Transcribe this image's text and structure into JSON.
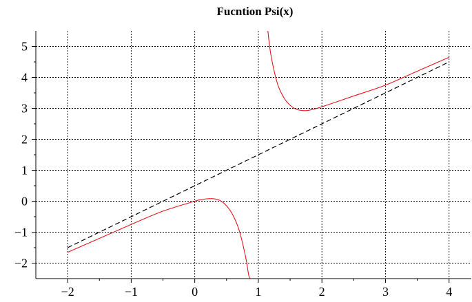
{
  "chart_data": {
    "type": "line",
    "title": "Fucntion  Psi(x)",
    "xlabel": "",
    "ylabel": "",
    "xlim": [
      -2.5,
      4.35
    ],
    "ylim": [
      -2.5,
      5.5
    ],
    "xticks": [
      -2,
      -1,
      0,
      1,
      2,
      3,
      4
    ],
    "yticks": [
      -2,
      -1,
      0,
      1,
      2,
      3,
      4,
      5
    ],
    "xtick_labels": [
      "−2",
      "−1",
      "0",
      "1",
      "2",
      "3",
      "4"
    ],
    "ytick_labels": [
      "−2",
      "−1",
      "0",
      "1",
      "2",
      "3",
      "4",
      "5"
    ],
    "grid": true,
    "series": [
      {
        "color": "#e8141c",
        "style": "solid",
        "segments": [
          {
            "x": [
              -2,
              -1.5,
              -1,
              -0.5,
              0,
              0.1,
              0.2,
              0.3,
              0.4,
              0.5,
              0.6,
              0.7,
              0.8,
              0.85,
              0.88
            ],
            "y": [
              -1.65,
              -1.2,
              -0.75,
              -0.32,
              0.0,
              0.05,
              0.08,
              0.08,
              0.02,
              -0.15,
              -0.45,
              -0.95,
              -1.8,
              -2.4,
              -2.5
            ]
          },
          {
            "x": [
              1.15,
              1.2,
              1.3,
              1.4,
              1.5,
              1.6,
              1.7,
              1.8,
              2.0,
              2.5,
              3.0,
              3.5,
              4.0
            ],
            "y": [
              5.5,
              4.7,
              3.8,
              3.35,
              3.1,
              2.97,
              2.93,
              2.94,
              3.05,
              3.4,
              3.75,
              4.2,
              4.65
            ]
          }
        ]
      },
      {
        "color": "#000000",
        "style": "dashed",
        "segments": [
          {
            "x": [
              -2,
              4
            ],
            "y": [
              -1.5,
              4.5
            ]
          }
        ]
      }
    ]
  }
}
